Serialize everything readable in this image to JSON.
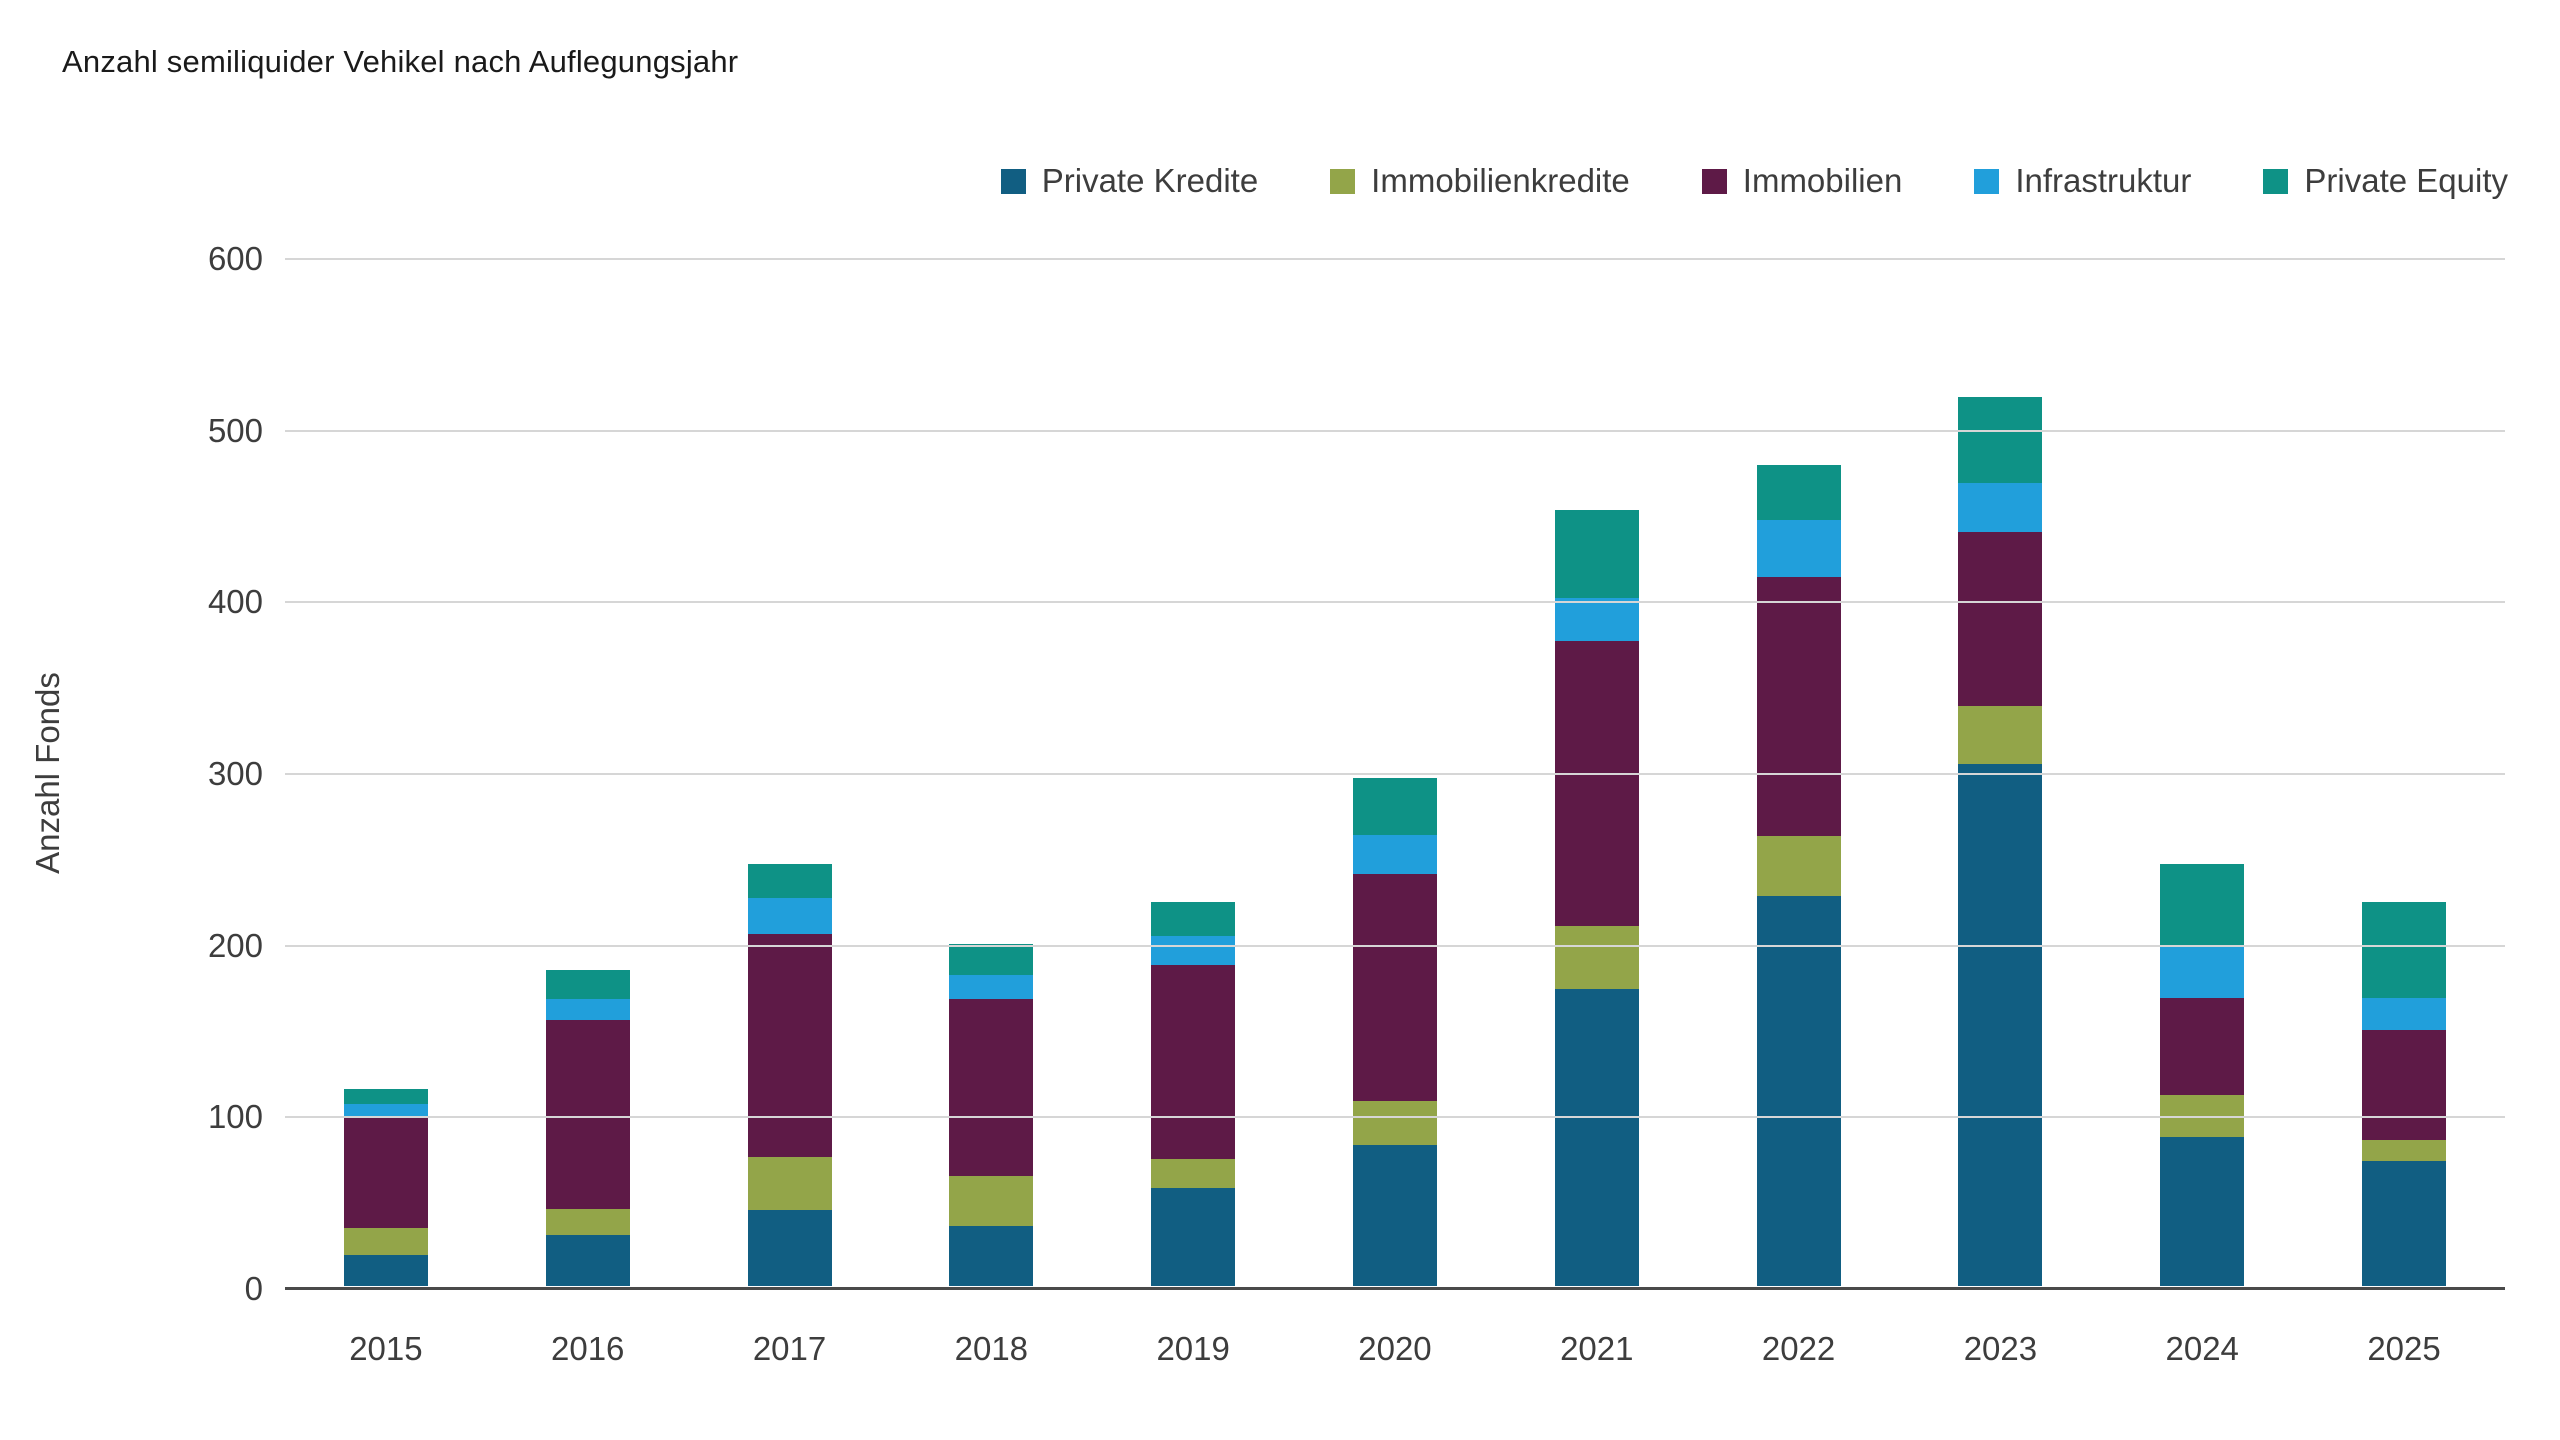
{
  "chart_data": {
    "type": "bar",
    "stacked": true,
    "title": "Anzahl semiliquider Vehikel nach Auflegungsjahr",
    "ylabel": "Anzahl Fonds",
    "xlabel": "",
    "ylim": [
      0,
      600
    ],
    "ytick_step": 100,
    "yticks": [
      0,
      100,
      200,
      300,
      400,
      500,
      600
    ],
    "grid": "horizontal",
    "legend_position": "top-right",
    "categories": [
      "2015",
      "2016",
      "2017",
      "2018",
      "2019",
      "2020",
      "2021",
      "2022",
      "2023",
      "2024",
      "2025"
    ],
    "series": [
      {
        "name": "Private Kredite",
        "color": "#115e82",
        "values": [
          18,
          30,
          44,
          35,
          57,
          82,
          173,
          227,
          304,
          87,
          73
        ]
      },
      {
        "name": "Immobilienkredite",
        "color": "#93a549",
        "values": [
          16,
          15,
          31,
          29,
          17,
          26,
          37,
          35,
          34,
          24,
          12
        ]
      },
      {
        "name": "Immobilien",
        "color": "#5e1a47",
        "values": [
          64,
          110,
          130,
          103,
          113,
          132,
          166,
          151,
          101,
          57,
          64
        ]
      },
      {
        "name": "Infrastruktur",
        "color": "#219fdb",
        "values": [
          8,
          12,
          21,
          14,
          17,
          23,
          25,
          33,
          29,
          30,
          19
        ]
      },
      {
        "name": "Private Equity",
        "color": "#0e9286",
        "values": [
          9,
          17,
          20,
          18,
          20,
          33,
          51,
          32,
          50,
          48,
          56
        ]
      }
    ]
  },
  "colors": {
    "background": "#ffffff",
    "gridline": "#d6d6d6",
    "axis": "#4a4a4a",
    "text": "#3d3d3d",
    "title": "#1a1a1a"
  }
}
